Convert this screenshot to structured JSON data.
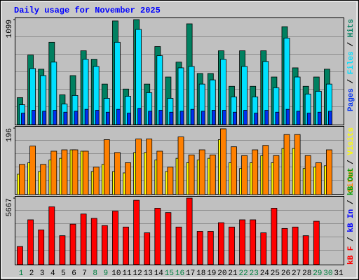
{
  "title": "Daily usage for November 2025",
  "legend_separator": " / ",
  "chart_data": [
    {
      "type": "bar",
      "ylim": [
        0,
        1099
      ],
      "yticks": [
        1099
      ],
      "series": [
        {
          "name": "Pages",
          "color": "#0030f0",
          "values": [
            120,
            150,
            140,
            150,
            130,
            140,
            160,
            150,
            130,
            160,
            120,
            170,
            140,
            150,
            130,
            140,
            160,
            140,
            150,
            150,
            130,
            150,
            120,
            150,
            130,
            160,
            140,
            120,
            130,
            140,
            null
          ]
        },
        {
          "name": "Files",
          "color": "#00e0ff",
          "values": [
            208,
            587,
            513,
            654,
            215,
            305,
            684,
            609,
            275,
            862,
            297,
            996,
            334,
            721,
            275,
            594,
            609,
            424,
            468,
            684,
            290,
            609,
            290,
            661,
            386,
            906,
            498,
            320,
            349,
            424,
            null
          ]
        },
        {
          "name": "Hits",
          "color": "#008060",
          "values": [
            282,
            728,
            580,
            862,
            312,
            513,
            773,
            684,
            424,
            1085,
            372,
            1099,
            424,
            817,
            498,
            654,
            1055,
            535,
            535,
            773,
            401,
            773,
            401,
            773,
            498,
            1025,
            594,
            401,
            498,
            580,
            null
          ]
        }
      ]
    },
    {
      "type": "bar",
      "ylim": [
        0,
        196
      ],
      "yticks": [
        196
      ],
      "series": [
        {
          "name": "Sites",
          "color": "#ff8000",
          "values": [
            89,
            143,
            89,
            128,
            132,
            132,
            128,
            81,
            162,
            124,
            94,
            164,
            164,
            128,
            81,
            170,
            117,
            132,
            117,
            194,
            141,
            115,
            132,
            145,
            115,
            177,
            177,
            115,
            94,
            132,
            null
          ]
        },
        {
          "name": "Visits",
          "color": "#ffff00",
          "values": [
            60,
            94,
            68,
            102,
            107,
            132,
            128,
            68,
            89,
            68,
            64,
            124,
            124,
            102,
            68,
            107,
            94,
            102,
            107,
            162,
            94,
            77,
            94,
            115,
            94,
            136,
            136,
            77,
            81,
            85,
            null
          ]
        }
      ]
    },
    {
      "type": "bar",
      "ylim": [
        0,
        5667
      ],
      "yticks": [
        5667
      ],
      "categories": [
        "1",
        "2",
        "3",
        "4",
        "5",
        "6",
        "7",
        "8",
        "9",
        "10",
        "11",
        "12",
        "13",
        "14",
        "15",
        "16",
        "17",
        "18",
        "19",
        "20",
        "21",
        "22",
        "23",
        "24",
        "25",
        "26",
        "27",
        "28",
        "29",
        "30",
        "31"
      ],
      "category_colors": [
        "#008040",
        "#000000",
        "#000000",
        "#000000",
        "#000000",
        "#000000",
        "#000000",
        "#008040",
        "#008040",
        "#000000",
        "#000000",
        "#000000",
        "#000000",
        "#000000",
        "#008040",
        "#008040",
        "#000000",
        "#000000",
        "#000000",
        "#000000",
        "#000000",
        "#008040",
        "#008040",
        "#000000",
        "#000000",
        "#000000",
        "#000000",
        "#000000",
        "#008040",
        "#008040",
        "#000000"
      ],
      "series": [
        {
          "name": "kB F",
          "color": "#ff0000",
          "values": [
            1540,
            3819,
            2957,
            4928,
            2464,
            3450,
            4312,
            3942,
            3326,
            4558,
            3203,
            5482,
            2710,
            4805,
            4435,
            3203,
            5667,
            2834,
            2834,
            3573,
            3203,
            3819,
            3819,
            2710,
            4805,
            3080,
            3203,
            2464,
            3696,
            null,
            null
          ]
        },
        {
          "name": "kB In",
          "color": "#0000ff"
        },
        {
          "name": "kB Out",
          "color": "#00a000"
        }
      ]
    }
  ]
}
